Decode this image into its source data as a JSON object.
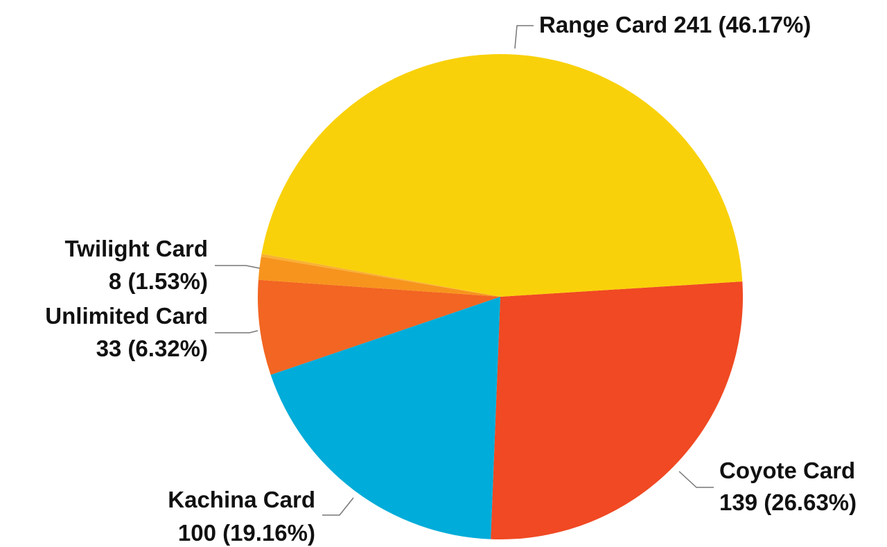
{
  "chart_data": {
    "type": "pie",
    "categories": [
      "Coyote Card",
      "Kachina Card",
      "Unlimited Card",
      "Twilight Card",
      null,
      "Range Card"
    ],
    "values": [
      139,
      100,
      33,
      8,
      1,
      241
    ],
    "value_labels": [
      "139 (26.63%)",
      "100 (19.16%)",
      "33 (6.32%)",
      "8 (1.53%)",
      null,
      "241 (46.17%)"
    ],
    "colors": [
      "#f04923",
      "#00acd9",
      "#f26522",
      "#f7941d",
      "#f8b133",
      "#f9d10a"
    ]
  }
}
